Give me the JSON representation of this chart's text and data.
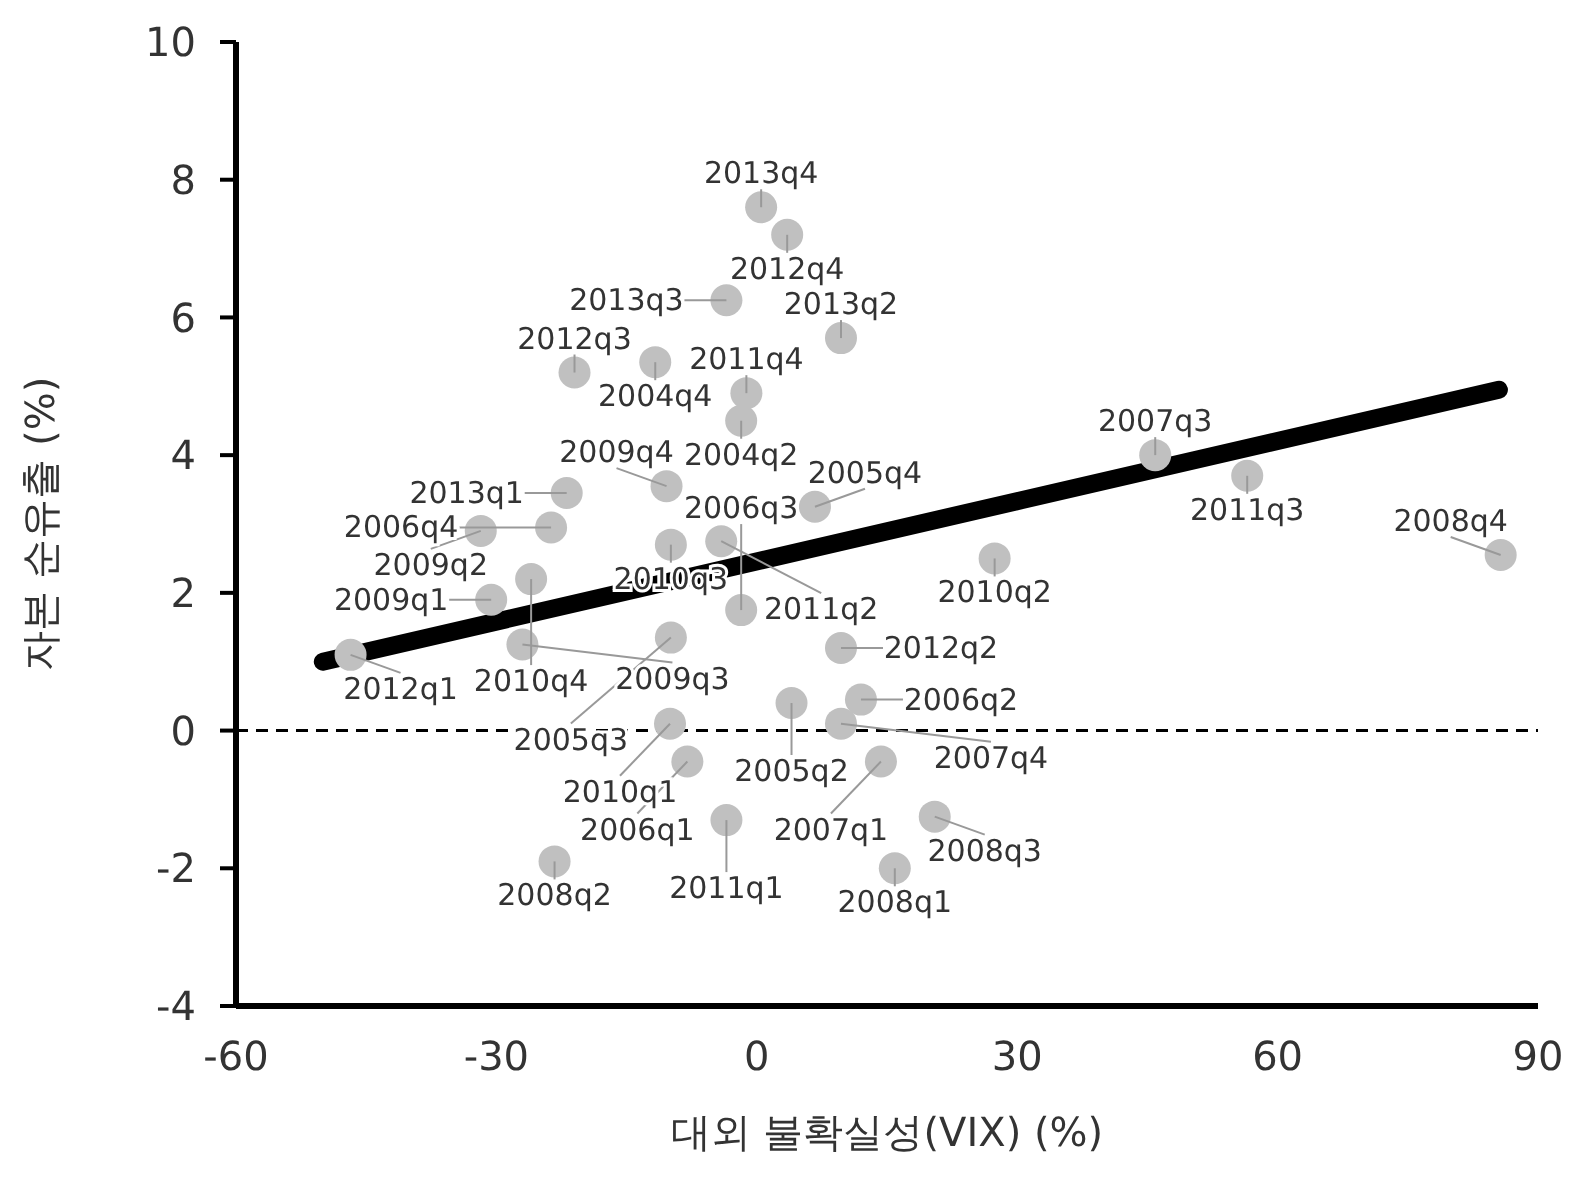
{
  "chart_data": {
    "type": "scatter",
    "xlabel": "대외 불확실성(VIX) (%)",
    "ylabel": "자본 순유출 (%)",
    "xlim": [
      -60,
      90
    ],
    "xticks": [
      -60,
      -30,
      0,
      30,
      60,
      90
    ],
    "ylim": [
      -4,
      10
    ],
    "yticks": [
      -4,
      -2,
      0,
      2,
      4,
      6,
      8,
      10
    ],
    "grid": false,
    "legend": false,
    "marker": "circle",
    "x": [
      0.5,
      3.5,
      -3.5,
      9.7,
      -21,
      -11.7,
      -1.2,
      -1.8,
      -10.4,
      -21.9,
      6.7,
      45.9,
      56.5,
      27.4,
      85.7,
      -31.8,
      -23.7,
      -9.9,
      -4.1,
      -26,
      -30.6,
      -27,
      -46.8,
      -1.8,
      -9.9,
      9.7,
      12,
      4,
      -10,
      9.7,
      -8,
      14.3,
      -3.5,
      20.5,
      -23.3,
      15.9
    ],
    "series": [
      {
        "type": "scatter",
        "color": "#c0c0c0",
        "values": [
          7.6,
          7.2,
          6.25,
          5.7,
          5.2,
          5.35,
          4.9,
          4.5,
          3.55,
          3.45,
          3.25,
          4.0,
          3.7,
          2.5,
          2.55,
          2.9,
          2.95,
          2.7,
          2.75,
          2.2,
          1.9,
          1.25,
          1.1,
          1.75,
          1.35,
          1.2,
          0.45,
          0.4,
          0.1,
          0.1,
          -0.45,
          -0.45,
          -1.3,
          -1.25,
          -1.9,
          -2.0
        ]
      },
      {
        "type": "line",
        "color": "#000000",
        "marker": "none",
        "x": [
          -50,
          85.5
        ],
        "values": [
          1.0,
          4.95
        ]
      }
    ],
    "ref_lines": [
      {
        "axis": "y",
        "value": 0,
        "color": "#000000",
        "line_style": "dashed"
      }
    ],
    "annotations": [
      {
        "text": "2013q4",
        "x": 0.5,
        "y": 7.6
      },
      {
        "text": "2012q4",
        "x": 3.5,
        "y": 7.2
      },
      {
        "text": "2013q3",
        "x": -3.5,
        "y": 6.25
      },
      {
        "text": "2013q2",
        "x": 9.7,
        "y": 5.7
      },
      {
        "text": "2012q3",
        "x": -21,
        "y": 5.2
      },
      {
        "text": "2004q4",
        "x": -11.7,
        "y": 5.35
      },
      {
        "text": "2011q4",
        "x": -1.2,
        "y": 4.9
      },
      {
        "text": "2004q2",
        "x": -1.8,
        "y": 4.5
      },
      {
        "text": "2009q4",
        "x": -10.4,
        "y": 3.55
      },
      {
        "text": "2013q1",
        "x": -21.9,
        "y": 3.45
      },
      {
        "text": "2005q4",
        "x": 6.7,
        "y": 3.25
      },
      {
        "text": "2007q3",
        "x": 45.9,
        "y": 4.0
      },
      {
        "text": "2011q3",
        "x": 56.5,
        "y": 3.7
      },
      {
        "text": "2010q2",
        "x": 27.4,
        "y": 2.5
      },
      {
        "text": "2008q4",
        "x": 85.7,
        "y": 2.55
      },
      {
        "text": "2009q2",
        "x": -31.8,
        "y": 2.9
      },
      {
        "text": "2006q4",
        "x": -23.7,
        "y": 2.95
      },
      {
        "text": "2010q3",
        "x": -9.9,
        "y": 2.7
      },
      {
        "text": "2011q2",
        "x": -4.1,
        "y": 2.75
      },
      {
        "text": "2010q4",
        "x": -26,
        "y": 2.2
      },
      {
        "text": "2009q1",
        "x": -30.6,
        "y": 1.9
      },
      {
        "text": "2009q3",
        "x": -27,
        "y": 1.25
      },
      {
        "text": "2012q1",
        "x": -46.8,
        "y": 1.1
      },
      {
        "text": "2006q3",
        "x": -1.8,
        "y": 1.75
      },
      {
        "text": "2005q3",
        "x": -9.9,
        "y": 1.35
      },
      {
        "text": "2012q2",
        "x": 9.7,
        "y": 1.2
      },
      {
        "text": "2006q2",
        "x": 12,
        "y": 0.45
      },
      {
        "text": "2005q2",
        "x": 4,
        "y": 0.4
      },
      {
        "text": "2010q1",
        "x": -10,
        "y": 0.1
      },
      {
        "text": "2007q4",
        "x": 9.7,
        "y": 0.1
      },
      {
        "text": "2006q1",
        "x": -8,
        "y": -0.45
      },
      {
        "text": "2007q1",
        "x": 14.3,
        "y": -0.45
      },
      {
        "text": "2011q1",
        "x": -3.5,
        "y": -1.3
      },
      {
        "text": "2008q3",
        "x": 20.5,
        "y": -1.25
      },
      {
        "text": "2008q2",
        "x": -23.3,
        "y": -1.9
      },
      {
        "text": "2008q1",
        "x": 15.9,
        "y": -2.0
      }
    ]
  }
}
